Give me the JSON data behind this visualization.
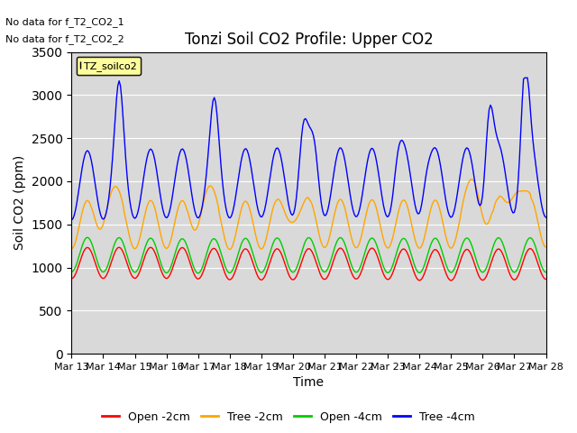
{
  "title": "Tonzi Soil CO2 Profile: Upper CO2",
  "xlabel": "Time",
  "ylabel": "Soil CO2 (ppm)",
  "ylim": [
    0,
    3500
  ],
  "yticks": [
    0,
    500,
    1000,
    1500,
    2000,
    2500,
    3000,
    3500
  ],
  "legend_label": "TZ_soilco2",
  "no_data_text1": "No data for f_T2_CO2_1",
  "no_data_text2": "No data for f_T2_CO2_2",
  "series_labels": [
    "Open -2cm",
    "Tree -2cm",
    "Open -4cm",
    "Tree -4cm"
  ],
  "series_colors": [
    "#ff0000",
    "#ffa500",
    "#00cc00",
    "#0000ff"
  ],
  "background_color": "#d9d9d9",
  "xtick_labels": [
    "Mar 13",
    "Mar 14",
    "Mar 15",
    "Mar 16",
    "Mar 17",
    "Mar 18",
    "Mar 19",
    "Mar 20",
    "Mar 21",
    "Mar 22",
    "Mar 23",
    "Mar 24",
    "Mar 25",
    "Mar 26",
    "Mar 27",
    "Mar 28"
  ],
  "n_days": 15,
  "seed": 42
}
